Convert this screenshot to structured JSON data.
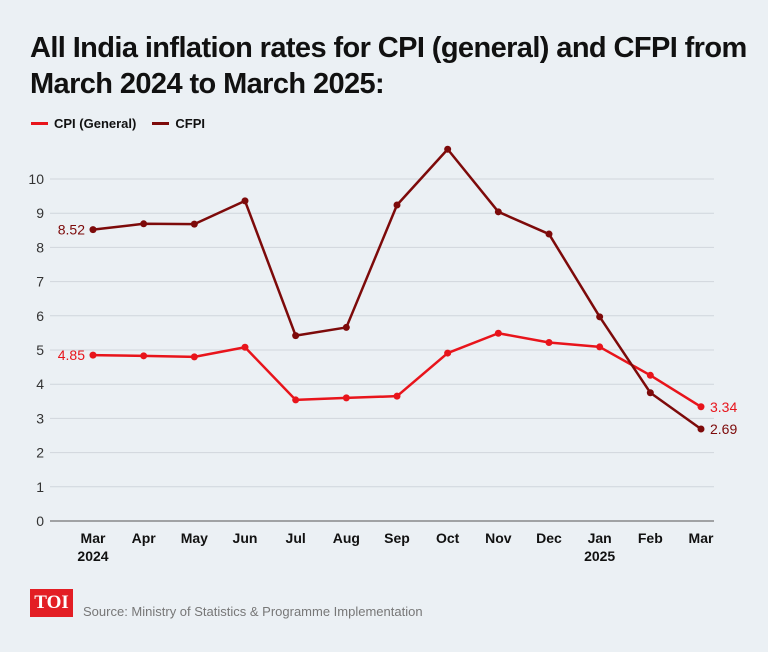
{
  "title": "All India inflation rates for CPI (general) and CFPI from March 2024 to March 2025:",
  "source": "Source: Ministry of Statistics & Programme Implementation",
  "logo": "TOI",
  "chart_data": {
    "type": "line",
    "title": "All India inflation rates for CPI (general) and CFPI from March 2024 to March 2025:",
    "categories": [
      "Mar",
      "Apr",
      "May",
      "Jun",
      "Jul",
      "Aug",
      "Sep",
      "Oct",
      "Nov",
      "Dec",
      "Jan",
      "Feb",
      "Mar"
    ],
    "year_labels": {
      "0": "2024",
      "10": "2025"
    },
    "ylim": [
      0,
      10
    ],
    "yticks": [
      0,
      1,
      2,
      3,
      4,
      5,
      6,
      7,
      8,
      9,
      10
    ],
    "grid": true,
    "legend_position": "top-left",
    "series": [
      {
        "name": "CPI (General)",
        "color": "#e8141b",
        "values": [
          4.85,
          4.83,
          4.8,
          5.08,
          3.54,
          3.6,
          3.65,
          4.91,
          5.49,
          5.22,
          5.09,
          4.26,
          3.34
        ],
        "labels": {
          "0": "4.85",
          "12": "3.34"
        }
      },
      {
        "name": "CFPI",
        "color": "#7d0a0a",
        "values": [
          8.52,
          8.69,
          8.68,
          9.36,
          5.42,
          5.66,
          9.24,
          10.87,
          9.04,
          8.39,
          5.97,
          3.75,
          2.69
        ],
        "labels": {
          "0": "8.52",
          "12": "2.69"
        }
      }
    ]
  }
}
